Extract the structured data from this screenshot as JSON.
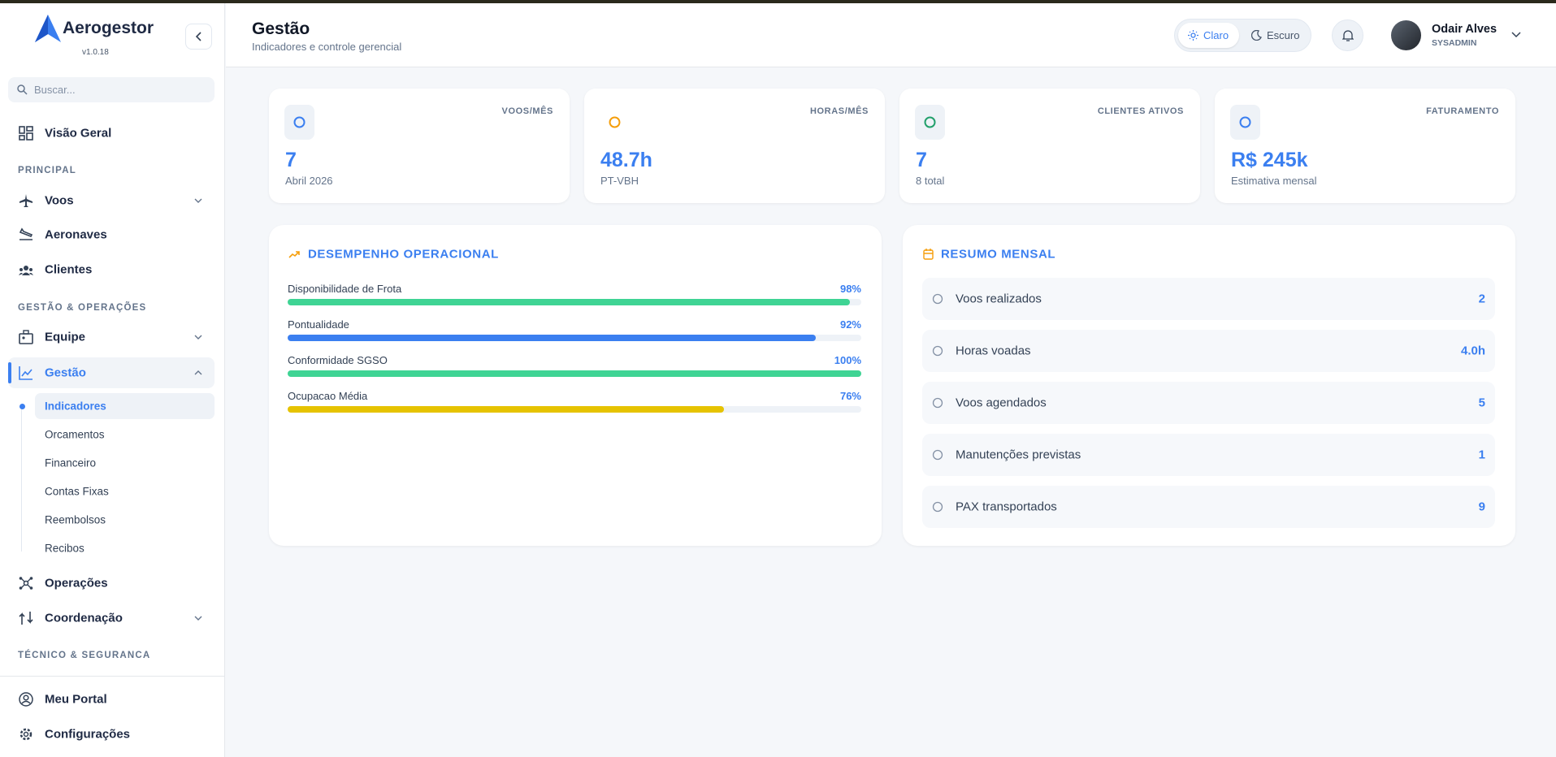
{
  "sidebar": {
    "brand": "Aerogestor",
    "version": "v1.0.18",
    "search_placeholder": "Buscar...",
    "overview": "Visão Geral",
    "sections": [
      {
        "title": "PRINCIPAL",
        "items": [
          "Voos",
          "Aeronaves",
          "Clientes"
        ]
      },
      {
        "title": "GESTÃO & OPERAÇÕES",
        "items": [
          "Equipe",
          "Gestão"
        ]
      }
    ],
    "subitems": [
      "Indicadores",
      "Orcamentos",
      "Financeiro",
      "Contas Fixas",
      "Reembolsos",
      "Recibos"
    ],
    "more_items": [
      "Operações",
      "Coordenação"
    ],
    "section_3": "TÉCNICO & SEGURANCA",
    "footer_items": [
      "Meu Portal",
      "Configurações"
    ]
  },
  "header": {
    "title": "Gestão",
    "subtitle": "Indicadores e controle gerencial",
    "theme_light": "Claro",
    "theme_dark": "Escuro",
    "user_name": "Odair Alves",
    "user_role": "SYSADMIN"
  },
  "cards": [
    {
      "label": "VOOS/MÊS",
      "value": "7",
      "sub": "Abril 2026"
    },
    {
      "label": "HORAS/MÊS",
      "value": "48.7h",
      "sub": "PT-VBH"
    },
    {
      "label": "CLIENTES ATIVOS",
      "value": "7",
      "sub": "8 total"
    },
    {
      "label": "FATURAMENTO",
      "value": "R$ 245k",
      "sub": "Estimativa mensal"
    }
  ],
  "performance": {
    "title": "DESEMPENHO OPERACIONAL",
    "categories": [
      "Disponibilidade de Frota",
      "Pontualidade",
      "Conformidade SGSO",
      "Ocupacao Média"
    ],
    "values": [
      98,
      92,
      100,
      76
    ],
    "value_labels": [
      "98%",
      "92%",
      "100%",
      "76%"
    ],
    "colors": [
      "#3fd494",
      "#3b7ff0",
      "#3fd494",
      "#e6c300"
    ],
    "max": 100
  },
  "summary": {
    "title": "RESUMO MENSAL",
    "items": [
      {
        "label": "Voos realizados",
        "value": "2"
      },
      {
        "label": "Horas voadas",
        "value": "4.0h"
      },
      {
        "label": "Voos agendados",
        "value": "5"
      },
      {
        "label": "Manutenções previstas",
        "value": "1"
      },
      {
        "label": "PAX transportados",
        "value": "9"
      }
    ]
  }
}
